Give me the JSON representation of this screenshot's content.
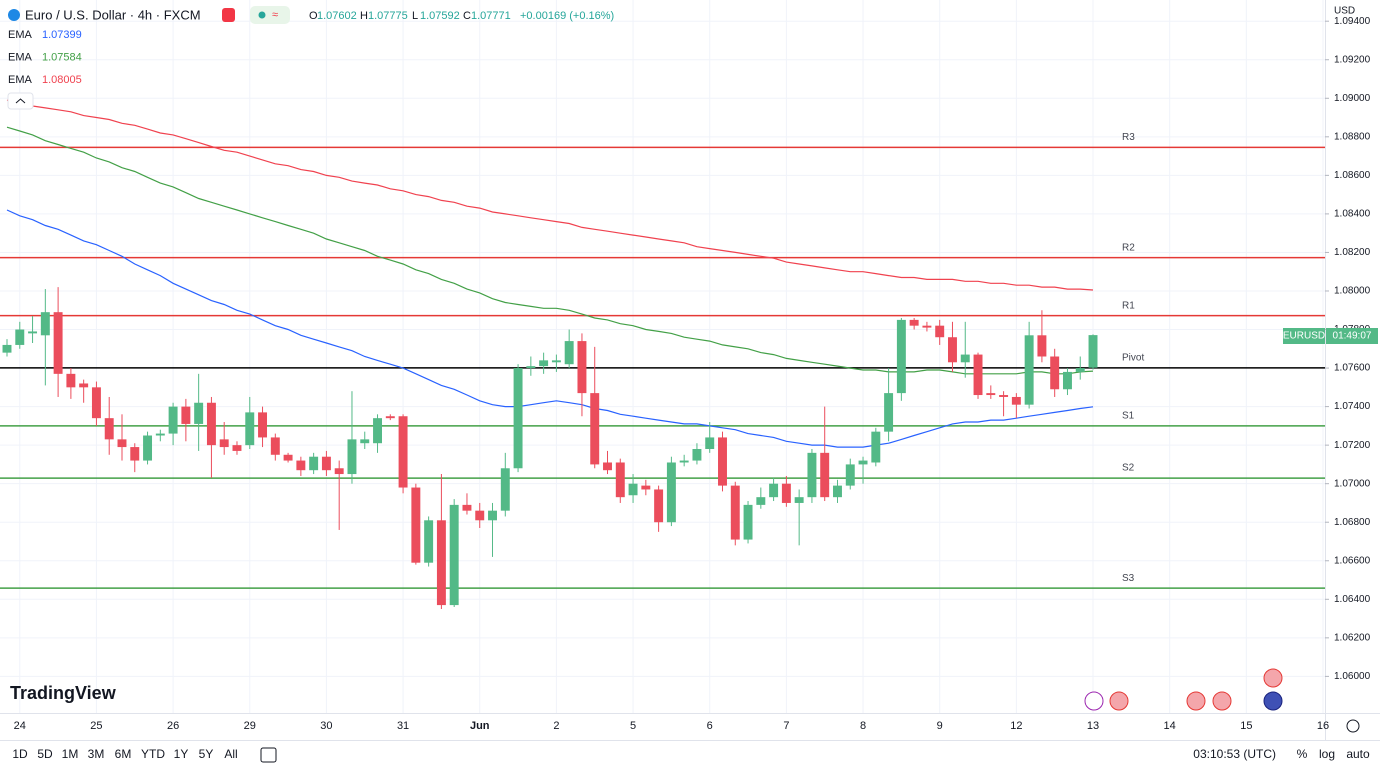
{
  "header": {
    "currency": "USD",
    "logo": "TradingView",
    "symbol": "EURUSD",
    "countdown": "01:49:07"
  },
  "toolbar": {
    "ranges": [
      "1D",
      "5D",
      "1M",
      "3M",
      "6M",
      "YTD",
      "1Y",
      "5Y",
      "All"
    ],
    "clock": "03:10:53 (UTC)",
    "options": [
      "%",
      "log",
      "auto"
    ]
  },
  "chart_data": {
    "type": "candlestick",
    "title": "Euro / U.S. Dollar · 4h · FXCM",
    "ohlc_labels": [
      "O",
      "H",
      "L",
      "C"
    ],
    "change": "+0.00169 (+0.16%)",
    "up_color": "#53b987",
    "down_color": "#eb4d5c",
    "grid": true,
    "ylim": [
      1.0581,
      1.0951
    ],
    "yticks": [
      {
        "value": 1.06,
        "label": "1.06000"
      },
      {
        "value": 1.062,
        "label": "1.06200"
      },
      {
        "value": 1.064,
        "label": "1.06400"
      },
      {
        "value": 1.066,
        "label": "1.06600"
      },
      {
        "value": 1.068,
        "label": "1.06800"
      },
      {
        "value": 1.07,
        "label": "1.07000"
      },
      {
        "value": 1.072,
        "label": "1.07200"
      },
      {
        "value": 1.074,
        "label": "1.07400"
      },
      {
        "value": 1.076,
        "label": "1.07600"
      },
      {
        "value": 1.078,
        "label": "1.07800"
      },
      {
        "value": 1.08,
        "label": "1.08000"
      },
      {
        "value": 1.082,
        "label": "1.08200"
      },
      {
        "value": 1.084,
        "label": "1.08400"
      },
      {
        "value": 1.086,
        "label": "1.08600"
      },
      {
        "value": 1.088,
        "label": "1.08800"
      },
      {
        "value": 1.09,
        "label": "1.09000"
      },
      {
        "value": 1.092,
        "label": "1.09200"
      },
      {
        "value": 1.094,
        "label": "1.09400"
      }
    ],
    "categories": [
      null,
      "24",
      null,
      null,
      null,
      null,
      null,
      "25",
      null,
      null,
      null,
      null,
      null,
      "26",
      null,
      null,
      null,
      null,
      null,
      "29",
      null,
      null,
      null,
      null,
      null,
      "30",
      null,
      null,
      null,
      null,
      null,
      "31",
      null,
      null,
      null,
      null,
      null,
      "Jun",
      null,
      null,
      null,
      null,
      null,
      "2",
      null,
      null,
      null,
      null,
      null,
      "5",
      null,
      null,
      null,
      null,
      null,
      "6",
      null,
      null,
      null,
      null,
      null,
      "7",
      null,
      null,
      null,
      null,
      null,
      "8",
      null,
      null,
      null,
      null,
      null,
      "9",
      null,
      null,
      null,
      null,
      null,
      "12",
      null,
      null,
      null,
      null,
      null,
      "13",
      null,
      null,
      null,
      null,
      null,
      "14",
      null,
      null,
      null,
      null,
      null,
      "15",
      null,
      null,
      null,
      null,
      null,
      "16"
    ],
    "open": [
      1.0768,
      1.0772,
      1.0778,
      1.0777,
      1.0789,
      1.0757,
      1.0752,
      1.075,
      1.0734,
      1.0723,
      1.0719,
      1.0712,
      1.0725,
      1.0726,
      1.074,
      1.0731,
      1.0742,
      1.0723,
      1.072,
      1.072,
      1.0737,
      1.0724,
      1.0715,
      1.0712,
      1.0707,
      1.0714,
      1.0708,
      1.0705,
      1.0721,
      1.0721,
      1.0735,
      1.0735,
      1.0698,
      1.0659,
      1.0681,
      1.0637,
      1.0689,
      1.0686,
      1.0681,
      1.0686,
      1.0708,
      1.076,
      1.0761,
      1.0763,
      1.0762,
      1.0774,
      1.0747,
      1.0711,
      1.0711,
      1.0694,
      1.0699,
      1.0697,
      1.068,
      1.0711,
      1.0712,
      1.0718,
      1.0724,
      1.0699,
      1.0671,
      1.0689,
      1.0693,
      1.07,
      1.069,
      1.0693,
      1.0716,
      1.0693,
      1.0699,
      1.071,
      1.0711,
      1.0727,
      1.0747,
      1.0785,
      1.0782,
      1.0782,
      1.0776,
      1.0763,
      1.0767,
      1.0747,
      1.0746,
      1.0745,
      1.0741,
      1.0777,
      1.0766,
      1.0749,
      1.0758,
      1.07602,
      null,
      null,
      null,
      null,
      null,
      null,
      null,
      null,
      null,
      null,
      null,
      null,
      null,
      null,
      null,
      null,
      null,
      null
    ],
    "high": [
      1.0775,
      1.0784,
      1.0787,
      1.0801,
      1.0802,
      1.076,
      1.0754,
      1.0753,
      1.0745,
      1.0736,
      1.0721,
      1.0727,
      1.0728,
      1.0742,
      1.0744,
      1.0757,
      1.0745,
      1.0732,
      1.0722,
      1.0745,
      1.074,
      1.0726,
      1.0716,
      1.0714,
      1.0716,
      1.0717,
      1.0712,
      1.0748,
      1.0727,
      1.0736,
      1.0736,
      1.0736,
      1.07,
      1.0683,
      1.0705,
      1.0692,
      1.0695,
      1.069,
      1.069,
      1.0716,
      1.0762,
      1.0766,
      1.0768,
      1.0767,
      1.078,
      1.0778,
      1.0771,
      1.0717,
      1.0713,
      1.0705,
      1.0702,
      1.0699,
      1.0714,
      1.0715,
      1.0721,
      1.0732,
      1.0727,
      1.0701,
      1.0691,
      1.0698,
      1.0703,
      1.0704,
      1.0697,
      1.0718,
      1.074,
      1.0702,
      1.0713,
      1.0714,
      1.0729,
      1.076,
      1.0786,
      1.0786,
      1.0784,
      1.0785,
      1.0784,
      1.0784,
      1.0768,
      1.0751,
      1.0748,
      1.0747,
      1.0784,
      1.079,
      1.077,
      1.076,
      1.0766,
      1.07775,
      null,
      null,
      null,
      null,
      null,
      null,
      null,
      null,
      null,
      null,
      null,
      null,
      null,
      null,
      null,
      null,
      null,
      null
    ],
    "low": [
      1.0766,
      1.077,
      1.0773,
      1.0751,
      1.0745,
      1.0744,
      1.0742,
      1.073,
      1.0715,
      1.0712,
      1.0706,
      1.071,
      1.0722,
      1.072,
      1.0722,
      1.0717,
      1.0703,
      1.0715,
      1.0715,
      1.0718,
      1.0719,
      1.0712,
      1.0711,
      1.0704,
      1.0705,
      1.0704,
      1.0676,
      1.07,
      1.0718,
      1.0716,
      1.0733,
      1.0695,
      1.0658,
      1.0657,
      1.0635,
      1.0636,
      1.0684,
      1.0677,
      1.0662,
      1.0683,
      1.0706,
      1.0756,
      1.0757,
      1.0758,
      1.076,
      1.0735,
      1.0708,
      1.0705,
      1.069,
      1.069,
      1.0694,
      1.0675,
      1.0678,
      1.0709,
      1.071,
      1.0716,
      1.0696,
      1.0668,
      1.0669,
      1.0687,
      1.0691,
      1.0688,
      1.0668,
      1.069,
      1.0691,
      1.069,
      1.0697,
      1.07,
      1.0709,
      1.0722,
      1.0743,
      1.078,
      1.0779,
      1.0772,
      1.0758,
      1.0755,
      1.0744,
      1.0744,
      1.0735,
      1.0734,
      1.0739,
      1.0763,
      1.0745,
      1.0746,
      1.0754,
      1.07592,
      null,
      null,
      null,
      null,
      null,
      null,
      null,
      null,
      null,
      null,
      null,
      null,
      null,
      null,
      null,
      null,
      null,
      null
    ],
    "close": [
      1.0772,
      1.078,
      1.0779,
      1.0789,
      1.0757,
      1.075,
      1.075,
      1.0734,
      1.0723,
      1.0719,
      1.0712,
      1.0725,
      1.0726,
      1.074,
      1.0731,
      1.0742,
      1.072,
      1.0719,
      1.0717,
      1.0737,
      1.0724,
      1.0715,
      1.0712,
      1.0707,
      1.0714,
      1.0707,
      1.0705,
      1.0723,
      1.0723,
      1.0734,
      1.0734,
      1.0698,
      1.0659,
      1.0681,
      1.0637,
      1.0689,
      1.0686,
      1.0681,
      1.0686,
      1.0708,
      1.076,
      1.0761,
      1.0764,
      1.0764,
      1.0774,
      1.0747,
      1.071,
      1.0707,
      1.0693,
      1.07,
      1.0697,
      1.068,
      1.0711,
      1.0712,
      1.0718,
      1.0724,
      1.0699,
      1.0671,
      1.0689,
      1.0693,
      1.07,
      1.069,
      1.0693,
      1.0716,
      1.0693,
      1.0699,
      1.071,
      1.0712,
      1.0727,
      1.0747,
      1.0785,
      1.0782,
      1.0781,
      1.0776,
      1.0763,
      1.0767,
      1.0746,
      1.0746,
      1.0745,
      1.0741,
      1.0777,
      1.0766,
      1.0749,
      1.0758,
      1.076,
      1.07771,
      null,
      null,
      null,
      null,
      null,
      null,
      null,
      null,
      null,
      null,
      null,
      null,
      null,
      null,
      null,
      null,
      null,
      null
    ],
    "series": [
      {
        "name": "EMA",
        "color": "#2962ff",
        "values": [
          1.0842,
          1.0839,
          1.0837,
          1.0834,
          1.0832,
          1.0829,
          1.0826,
          1.0824,
          1.0821,
          1.0818,
          1.0814,
          1.0811,
          1.0808,
          1.0804,
          1.0801,
          1.0798,
          1.0795,
          1.0793,
          1.079,
          1.0788,
          1.0785,
          1.0782,
          1.078,
          1.0777,
          1.0775,
          1.0773,
          1.0771,
          1.0769,
          1.0766,
          1.0764,
          1.0762,
          1.076,
          1.0757,
          1.0754,
          1.0751,
          1.0749,
          1.0746,
          1.0743,
          1.0741,
          1.074,
          1.074,
          1.0741,
          1.0742,
          1.0743,
          1.0742,
          1.0741,
          1.0739,
          1.0738,
          1.0736,
          1.0735,
          1.0734,
          1.0733,
          1.0732,
          1.0731,
          1.0731,
          1.073,
          1.0729,
          1.0728,
          1.0726,
          1.0725,
          1.0724,
          1.0722,
          1.0721,
          1.072,
          1.072,
          1.0719,
          1.0719,
          1.0719,
          1.072,
          1.0721,
          1.0723,
          1.0725,
          1.0727,
          1.0729,
          1.0731,
          1.0732,
          1.0732,
          1.0733,
          1.0733,
          1.0734,
          1.0735,
          1.0736,
          1.0737,
          1.0738,
          1.0739,
          1.07399,
          null,
          null,
          null,
          null,
          null,
          null,
          null,
          null,
          null,
          null,
          null,
          null,
          null,
          null,
          null,
          null,
          null,
          null
        ]
      },
      {
        "name": "EMA",
        "color": "#43a047",
        "values": [
          1.0885,
          1.0883,
          1.0881,
          1.0878,
          1.0876,
          1.0874,
          1.0872,
          1.0869,
          1.0867,
          1.0864,
          1.0862,
          1.0859,
          1.0856,
          1.0854,
          1.0851,
          1.0848,
          1.0846,
          1.0844,
          1.0842,
          1.084,
          1.0838,
          1.0836,
          1.0834,
          1.0832,
          1.083,
          1.0827,
          1.0825,
          1.0823,
          1.0821,
          1.0818,
          1.0816,
          1.0814,
          1.0811,
          1.0809,
          1.0806,
          1.0804,
          1.0801,
          1.0799,
          1.0796,
          1.0794,
          1.0793,
          1.0792,
          1.0791,
          1.0791,
          1.079,
          1.0788,
          1.0786,
          1.0785,
          1.0783,
          1.0782,
          1.078,
          1.0779,
          1.0778,
          1.0776,
          1.0775,
          1.0774,
          1.0772,
          1.0771,
          1.077,
          1.0768,
          1.0767,
          1.0765,
          1.0764,
          1.0763,
          1.0762,
          1.0761,
          1.076,
          1.0759,
          1.0759,
          1.0758,
          1.0758,
          1.0758,
          1.0759,
          1.0759,
          1.0758,
          1.0757,
          1.0757,
          1.0757,
          1.0757,
          1.0757,
          1.0758,
          1.0758,
          1.0757,
          1.0757,
          1.0758,
          1.07584,
          null,
          null,
          null,
          null,
          null,
          null,
          null,
          null,
          null,
          null,
          null,
          null,
          null,
          null,
          null,
          null,
          null,
          null
        ]
      },
      {
        "name": "EMA",
        "color": "#f0424f",
        "values": [
          1.0899,
          1.0898,
          1.0896,
          1.0895,
          1.0894,
          1.0893,
          1.0891,
          1.089,
          1.0889,
          1.0887,
          1.0886,
          1.0884,
          1.0882,
          1.0881,
          1.0879,
          1.0877,
          1.0875,
          1.0873,
          1.0872,
          1.087,
          1.0868,
          1.0866,
          1.0865,
          1.0863,
          1.0862,
          1.086,
          1.0859,
          1.0857,
          1.0856,
          1.0855,
          1.0853,
          1.0852,
          1.085,
          1.0849,
          1.0847,
          1.0846,
          1.0844,
          1.0843,
          1.0841,
          1.084,
          1.0839,
          1.0838,
          1.0837,
          1.0836,
          1.0835,
          1.0833,
          1.0832,
          1.0831,
          1.083,
          1.0829,
          1.0828,
          1.0827,
          1.0826,
          1.0825,
          1.0823,
          1.0822,
          1.0821,
          1.082,
          1.0819,
          1.0818,
          1.0817,
          1.0815,
          1.0814,
          1.0813,
          1.0812,
          1.0811,
          1.081,
          1.081,
          1.0809,
          1.0808,
          1.0807,
          1.0807,
          1.0806,
          1.0806,
          1.0806,
          1.0805,
          1.0805,
          1.0804,
          1.0804,
          1.0803,
          1.0803,
          1.0802,
          1.0802,
          1.0801,
          1.0801,
          1.08005,
          null,
          null,
          null,
          null,
          null,
          null,
          null,
          null,
          null,
          null,
          null,
          null,
          null,
          null,
          null,
          null,
          null,
          null
        ]
      }
    ],
    "levels": [
      {
        "name": "R3",
        "value": 1.08745,
        "color": "#e53935"
      },
      {
        "name": "R2",
        "value": 1.08173,
        "color": "#e53935"
      },
      {
        "name": "R1",
        "value": 1.07872,
        "color": "#e53935"
      },
      {
        "name": "Pivot",
        "value": 1.07601,
        "color": "#000000"
      },
      {
        "name": "S1",
        "value": 1.073,
        "color": "#43a047"
      },
      {
        "name": "S2",
        "value": 1.07029,
        "color": "#43a047"
      },
      {
        "name": "S3",
        "value": 1.06458,
        "color": "#43a047"
      }
    ]
  }
}
